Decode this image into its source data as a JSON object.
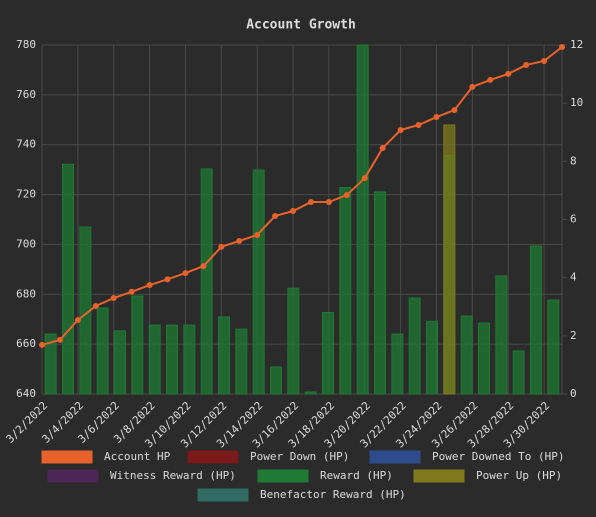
{
  "chart_data": {
    "type": "bar-line",
    "title": "Account Growth",
    "categories": [
      "3/2/2022",
      null,
      "3/4/2022",
      null,
      "3/6/2022",
      null,
      "3/8/2022",
      null,
      "3/10/2022",
      null,
      "3/12/2022",
      null,
      "3/14/2022",
      null,
      "3/16/2022",
      null,
      "3/18/2022",
      null,
      "3/20/2022",
      null,
      "3/22/2022",
      null,
      "3/24/2022",
      null,
      "3/26/2022",
      null,
      "3/28/2022",
      null,
      "3/30/2022",
      null
    ],
    "series": [
      {
        "name": "Account HP",
        "color": "#e8622c",
        "type": "line",
        "axis": "y",
        "values": [
          659.7,
          661.7,
          669.7,
          675.3,
          678.5,
          681,
          683.7,
          686,
          688.5,
          691.3,
          699,
          701.4,
          703.8,
          711.4,
          713.4,
          717,
          717,
          719.8,
          726.6,
          738.7,
          745.9,
          747.9,
          751.1,
          753.9,
          763.2,
          766,
          768.4,
          772,
          773.6,
          779.2
        ]
      },
      {
        "name": "Power Down (HP)",
        "color": "#7a1a1a"
      },
      {
        "name": "Power Downed To (HP)",
        "color": "#2e4c8c"
      },
      {
        "name": "Witness Reward (HP)",
        "color": "#4b2656"
      },
      {
        "name": "Reward (HP)",
        "color": "#1f7a34",
        "type": "bar",
        "axis": "y2",
        "values": [
          2.06,
          7.9,
          5.74,
          2.96,
          2.17,
          3.37,
          2.37,
          2.37,
          2.37,
          7.74,
          2.65,
          2.23,
          7.7,
          0.93,
          3.64,
          0.07,
          2.8,
          7.1,
          12,
          6.95,
          2.06,
          3.3,
          2.5,
          8.2,
          2.68,
          2.44,
          4.06,
          1.48,
          5.09,
          3.23
        ]
      },
      {
        "name": "Power Up (HP)",
        "color": "#807a1c",
        "type": "bar",
        "axis": "y2",
        "values": [
          null,
          null,
          null,
          null,
          null,
          null,
          null,
          null,
          null,
          null,
          null,
          null,
          null,
          null,
          null,
          null,
          null,
          null,
          null,
          null,
          null,
          null,
          null,
          9.25,
          null,
          null,
          null,
          null,
          null,
          null
        ]
      },
      {
        "name": "Benefactor Reward (HP)",
        "color": "#2f6b62"
      }
    ],
    "ylim": [
      640,
      780
    ],
    "yticks": [
      640,
      660,
      680,
      700,
      720,
      740,
      760,
      780
    ],
    "y2lim": [
      0,
      12
    ],
    "y2ticks": [
      0,
      2,
      4,
      6,
      8,
      10,
      12
    ],
    "grid": true
  }
}
